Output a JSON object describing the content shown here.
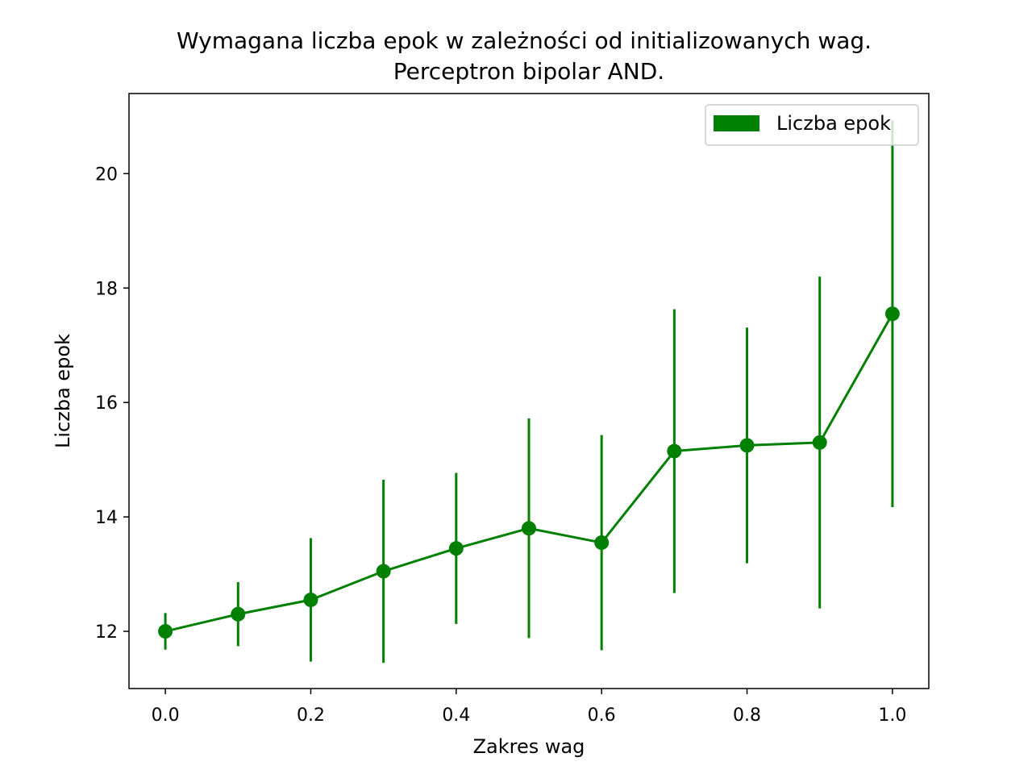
{
  "chart_data": {
    "type": "line",
    "title": [
      "Wymagana liczba epok w zależności od initializowanych wag.",
      "Perceptron bipolar AND."
    ],
    "xlabel": "Zakres wag",
    "ylabel": "Liczba epok",
    "xlim": [
      -0.05,
      1.05
    ],
    "ylim": [
      11.0,
      21.4
    ],
    "xticks": [
      0.0,
      0.2,
      0.4,
      0.6,
      0.8,
      1.0
    ],
    "xtick_labels": [
      "0.0",
      "0.2",
      "0.4",
      "0.6",
      "0.8",
      "1.0"
    ],
    "yticks": [
      12,
      14,
      16,
      18,
      20
    ],
    "ytick_labels": [
      "12",
      "14",
      "16",
      "18",
      "20"
    ],
    "grid": false,
    "legend": {
      "position": "top-right",
      "entries": [
        "Liczba epok"
      ]
    },
    "series": [
      {
        "name": "Liczba epok",
        "color": "#008000",
        "x": [
          0.0,
          0.1,
          0.2,
          0.3,
          0.4,
          0.5,
          0.6,
          0.7,
          0.8,
          0.9,
          1.0
        ],
        "y": [
          12.0,
          12.3,
          12.55,
          13.05,
          13.45,
          13.8,
          13.55,
          15.15,
          15.25,
          15.3,
          17.55
        ],
        "yerr": [
          0.32,
          0.56,
          1.08,
          1.6,
          1.32,
          1.92,
          1.88,
          2.48,
          2.06,
          2.9,
          3.38
        ]
      }
    ]
  }
}
